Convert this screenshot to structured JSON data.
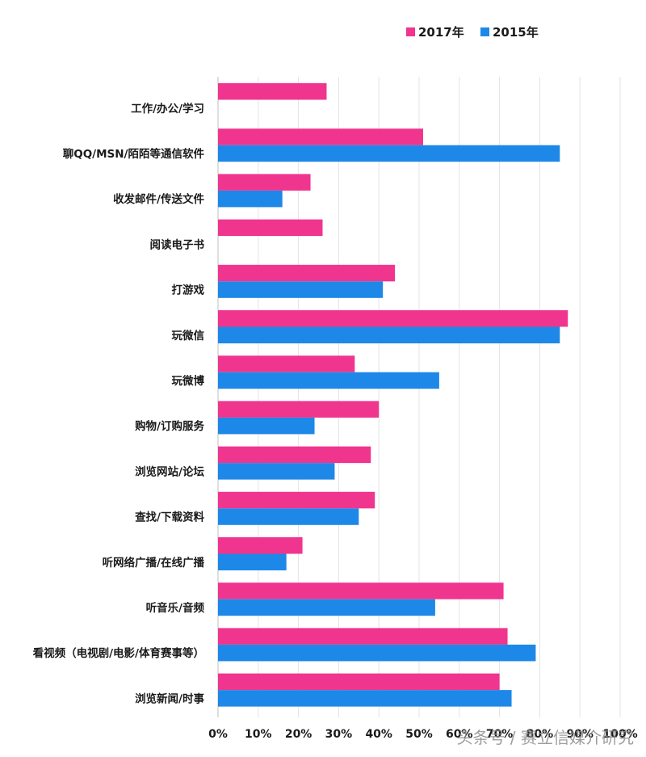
{
  "chart_data": {
    "type": "bar",
    "orientation": "horizontal",
    "categories": [
      "工作/办公/学习",
      "聊QQ/MSN/陌陌等通信软件",
      "收发邮件/传送文件",
      "阅读电子书",
      "打游戏",
      "玩微信",
      "玩微博",
      "购物/订购服务",
      "浏览网站/论坛",
      "查找/下载资料",
      "听网络广播/在线广播",
      "听音乐/音频",
      "看视频（电视剧/电影/体育赛事等）",
      "浏览新闻/时事"
    ],
    "series": [
      {
        "name": "2017年",
        "color": "#f0358f",
        "values": [
          27,
          51,
          23,
          26,
          44,
          87,
          34,
          40,
          38,
          39,
          21,
          71,
          72,
          70
        ]
      },
      {
        "name": "2015年",
        "color": "#1e88e8",
        "values": [
          null,
          85,
          16,
          null,
          41,
          85,
          55,
          24,
          29,
          35,
          17,
          54,
          79,
          73
        ]
      }
    ],
    "xticks": [
      "0%",
      "10%",
      "20%",
      "30%",
      "40%",
      "50%",
      "60%",
      "70%",
      "80%",
      "90%",
      "100%"
    ],
    "xlim": [
      0,
      100
    ],
    "grid": true,
    "legend": "top-right"
  },
  "watermark": {
    "text": "头条号 / 赛立信媒介研究"
  }
}
